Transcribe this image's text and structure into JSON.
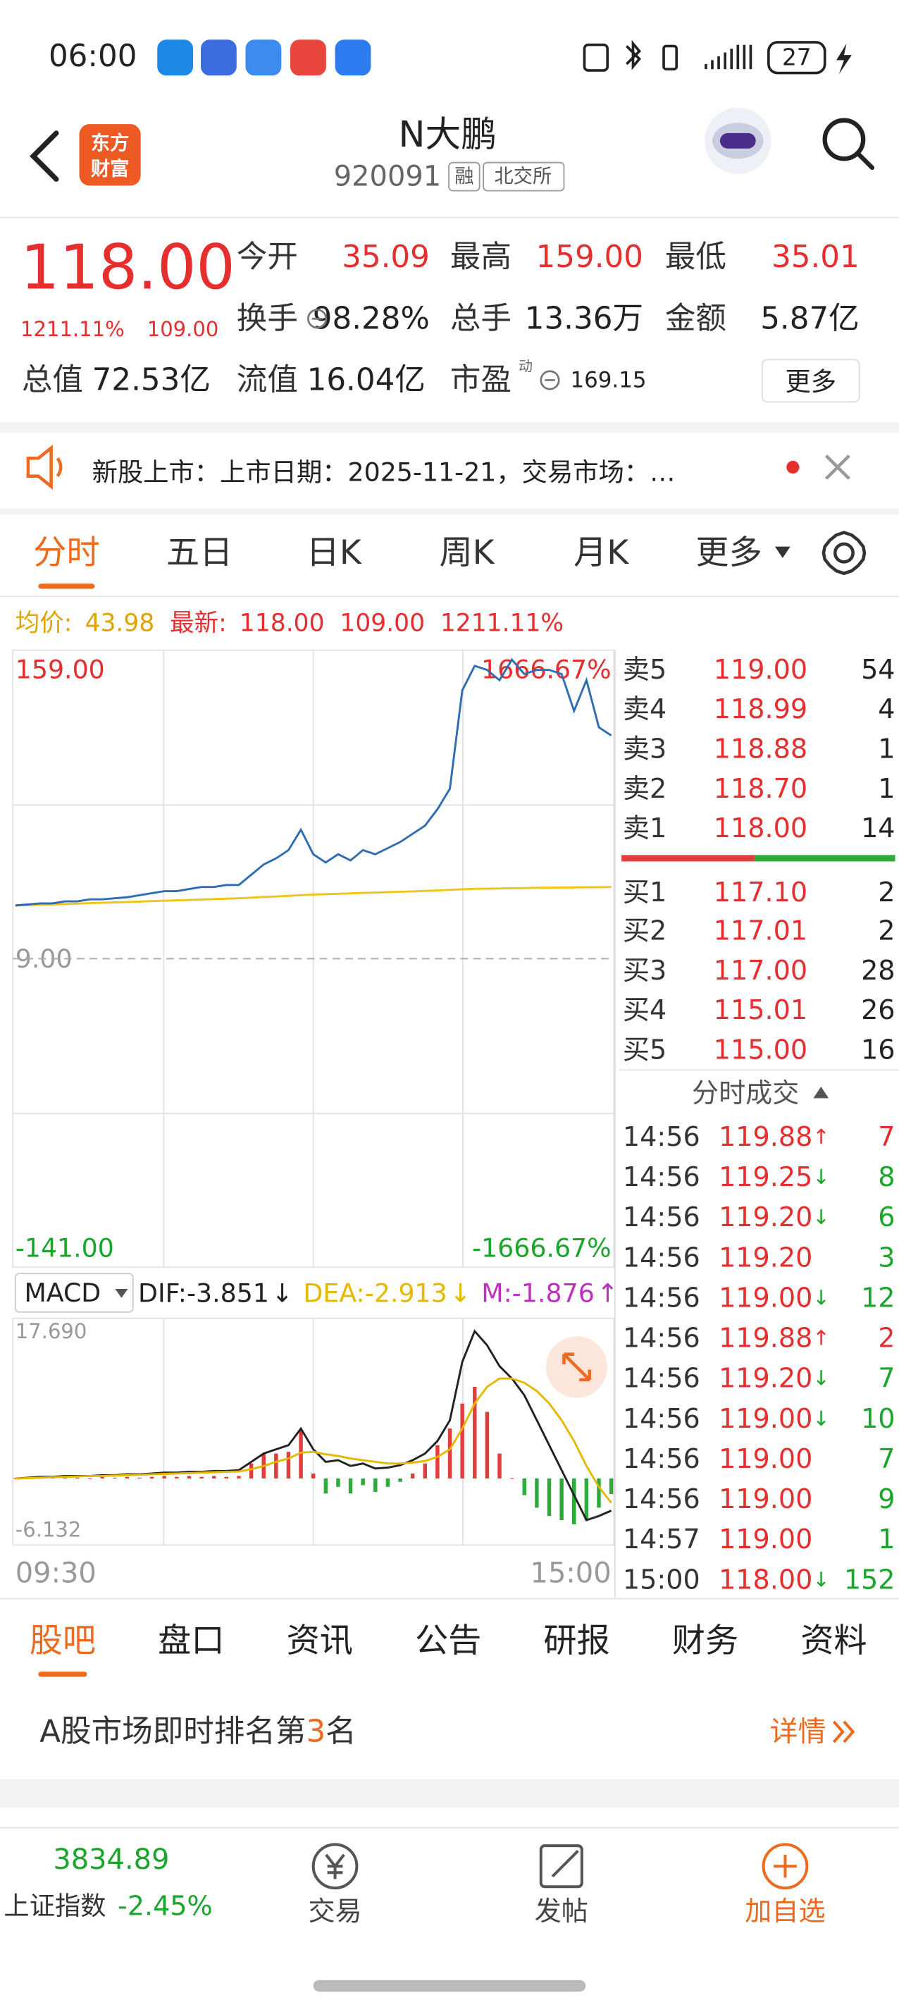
{
  "status_bar": {
    "time": "06:00",
    "battery": "27"
  },
  "header": {
    "logo": [
      "东方",
      "财富"
    ],
    "title": "N大鹏",
    "code": "920091",
    "tags": [
      "融",
      "北交所"
    ]
  },
  "quote": {
    "price": "118.00",
    "change_pct": "1211.11%",
    "change": "109.00",
    "stats": [
      {
        "label": "今开",
        "value": "35.09"
      },
      {
        "label": "最高",
        "value": "159.00"
      },
      {
        "label": "最低",
        "value": "35.01"
      },
      {
        "label": "换手",
        "value": "98.28%"
      },
      {
        "label": "总手",
        "value": "13.36万"
      },
      {
        "label": "金额",
        "value": "5.87亿"
      },
      {
        "label": "总值",
        "value": "72.53亿"
      },
      {
        "label": "流值",
        "value": "16.04亿"
      },
      {
        "label": "市盈",
        "value": "169.15"
      }
    ],
    "pe_note": "动",
    "more": "更多"
  },
  "notice": {
    "text": "新股上市：上市日期：2025-11-21，交易市场：…"
  },
  "tabs": {
    "items": [
      "分时",
      "五日",
      "日K",
      "周K",
      "月K",
      "更多"
    ],
    "active": 0
  },
  "summary": {
    "avg_label": "均价:",
    "avg": "43.98",
    "latest_label": "最新:",
    "latest_price": "118.00",
    "latest_change": "109.00",
    "latest_pct": "1211.11%"
  },
  "chart_data": [
    {
      "type": "line",
      "ylim": [
        -141,
        159
      ],
      "yticks": [
        {
          "value": 159,
          "label": "159.00"
        },
        {
          "value": 9,
          "label": "9.00"
        },
        {
          "value": -141,
          "label": "-141.00"
        }
      ],
      "pct_labels": [
        "1666.67%",
        "-1666.67%"
      ],
      "grid": true,
      "series": [
        {
          "color": "#2f6db3",
          "values": [
            35,
            35.5,
            36,
            36,
            37,
            37,
            38,
            38,
            38.5,
            39,
            40,
            41,
            42,
            42,
            43,
            44,
            44,
            45,
            45,
            50,
            55,
            58,
            62,
            72,
            60,
            56,
            60,
            57,
            62,
            60,
            63,
            66,
            70,
            74,
            82,
            92,
            140,
            152,
            150,
            145,
            155,
            148,
            150,
            150,
            148,
            130,
            145,
            122,
            118
          ]
        },
        {
          "color": "#f0c419",
          "values": [
            35.0,
            35.1,
            35.3,
            35.5,
            35.7,
            35.9,
            36.1,
            36.3,
            36.5,
            36.7,
            36.9,
            37.1,
            37.3,
            37.5,
            37.7,
            37.9,
            38.1,
            38.3,
            38.5,
            38.8,
            39.1,
            39.4,
            39.7,
            40.0,
            40.3,
            40.5,
            40.7,
            40.9,
            41.1,
            41.3,
            41.5,
            41.7,
            41.9,
            42.1,
            42.3,
            42.6,
            42.9,
            43.1,
            43.2,
            43.3,
            43.4,
            43.5,
            43.6,
            43.7,
            43.75,
            43.8,
            43.85,
            43.9,
            43.98
          ]
        }
      ]
    },
    {
      "type": "macd",
      "title": "MACD",
      "ylim": [
        -6.132,
        17.69
      ],
      "yticks": [
        {
          "value": 17.69,
          "label": "17.690"
        },
        -6.132
      ],
      "xlabels": [
        "09:30",
        "15:00"
      ],
      "indicators": [
        {
          "label": "DIF:-3.851",
          "arrow": "↓",
          "color": "#222222"
        },
        {
          "label": "DEA:-2.913",
          "arrow": "↓",
          "color": "#e6b800"
        },
        {
          "label": "M:-1.876",
          "arrow": "↑",
          "color": "#c030c0"
        }
      ],
      "series": [
        {
          "type": "line",
          "color": "#222222",
          "values": [
            0,
            0.1,
            0.2,
            0.2,
            0.3,
            0.3,
            0.3,
            0.4,
            0.4,
            0.5,
            0.5,
            0.6,
            0.7,
            0.7,
            0.8,
            0.8,
            0.9,
            0.9,
            1.0,
            2.0,
            3.0,
            3.5,
            4.0,
            6.0,
            3.5,
            2.0,
            2.2,
            1.5,
            1.8,
            1.2,
            1.3,
            1.6,
            2.2,
            3.0,
            4.5,
            7.0,
            14.0,
            17.69,
            16.0,
            13.5,
            12.0,
            10.0,
            7.0,
            4.0,
            1.0,
            -2.0,
            -5.0,
            -4.5,
            -3.851
          ]
        },
        {
          "type": "line",
          "color": "#e6b800",
          "values": [
            0,
            0.05,
            0.1,
            0.15,
            0.2,
            0.25,
            0.3,
            0.3,
            0.35,
            0.4,
            0.45,
            0.5,
            0.55,
            0.6,
            0.65,
            0.7,
            0.75,
            0.8,
            0.85,
            1.1,
            1.5,
            2.0,
            2.4,
            3.1,
            3.2,
            2.9,
            2.7,
            2.4,
            2.2,
            2.0,
            1.8,
            1.8,
            1.9,
            2.1,
            2.6,
            3.5,
            6.0,
            9.0,
            11.0,
            12.0,
            12.0,
            11.5,
            10.5,
            9.0,
            7.0,
            4.5,
            1.5,
            -1.0,
            -2.913
          ]
        },
        {
          "type": "bar",
          "color": "#e23c3c",
          "negative_color": "#2eaa3a",
          "values": [
            0,
            0.1,
            0.2,
            0.1,
            0.2,
            0.1,
            0,
            0.2,
            0.1,
            0.2,
            0.1,
            0.2,
            0.3,
            0.2,
            0.3,
            0.2,
            0.3,
            0.2,
            0.3,
            1.8,
            3.0,
            3.0,
            3.2,
            5.8,
            0.6,
            -1.8,
            -1.0,
            -1.8,
            -0.8,
            -1.6,
            -1.0,
            -0.4,
            0.6,
            1.8,
            4.0,
            6.0,
            9.0,
            11.0,
            8.0,
            3.0,
            0,
            -2.0,
            -3.5,
            -4.5,
            -5.0,
            -5.5,
            -5.0,
            -3.5,
            -1.876
          ]
        }
      ]
    }
  ],
  "order_book": {
    "sell": [
      {
        "label": "卖5",
        "price": "119.00",
        "volume": "54"
      },
      {
        "label": "卖4",
        "price": "118.99",
        "volume": "4"
      },
      {
        "label": "卖3",
        "price": "118.88",
        "volume": "1"
      },
      {
        "label": "卖2",
        "price": "118.70",
        "volume": "1"
      },
      {
        "label": "卖1",
        "price": "118.00",
        "volume": "14"
      }
    ],
    "buy": [
      {
        "label": "买1",
        "price": "117.10",
        "volume": "2"
      },
      {
        "label": "买2",
        "price": "117.01",
        "volume": "2"
      },
      {
        "label": "买3",
        "price": "117.00",
        "volume": "28"
      },
      {
        "label": "买4",
        "price": "115.01",
        "volume": "26"
      },
      {
        "label": "买5",
        "price": "115.00",
        "volume": "16"
      }
    ]
  },
  "trades": {
    "title": "分时成交",
    "rows": [
      {
        "time": "14:56",
        "price": "119.88",
        "arrow": "↑",
        "volume": "7",
        "side": "buy"
      },
      {
        "time": "14:56",
        "price": "119.25",
        "arrow": "↓",
        "volume": "8",
        "side": "sell"
      },
      {
        "time": "14:56",
        "price": "119.20",
        "arrow": "↓",
        "volume": "6",
        "side": "sell"
      },
      {
        "time": "14:56",
        "price": "119.20",
        "volume": "3",
        "side": "sell"
      },
      {
        "time": "14:56",
        "price": "119.00",
        "arrow": "↓",
        "volume": "12",
        "side": "sell"
      },
      {
        "time": "14:56",
        "price": "119.88",
        "arrow": "↑",
        "volume": "2",
        "side": "buy"
      },
      {
        "time": "14:56",
        "price": "119.20",
        "arrow": "↓",
        "volume": "7",
        "side": "sell"
      },
      {
        "time": "14:56",
        "price": "119.00",
        "arrow": "↓",
        "volume": "10",
        "side": "sell"
      },
      {
        "time": "14:56",
        "price": "119.00",
        "volume": "7",
        "side": "sell"
      },
      {
        "time": "14:56",
        "price": "119.00",
        "volume": "9",
        "side": "sell"
      },
      {
        "time": "14:57",
        "price": "119.00",
        "volume": "1",
        "side": "sell"
      },
      {
        "time": "15:00",
        "price": "118.00",
        "arrow": "↓",
        "volume": "152",
        "side": "sell"
      }
    ]
  },
  "section_tabs": {
    "items": [
      "股吧",
      "盘口",
      "资讯",
      "公告",
      "研报",
      "财务",
      "资料"
    ],
    "active": 0
  },
  "rank": {
    "prefix": "A股市场即时排名第",
    "rank": "3",
    "suffix": "名",
    "link": "详情"
  },
  "bottom_nav": {
    "index_value": "3834.89",
    "index_name": "上证指数",
    "index_change": "-2.45%",
    "items": [
      "交易",
      "发帖",
      "加自选"
    ]
  }
}
